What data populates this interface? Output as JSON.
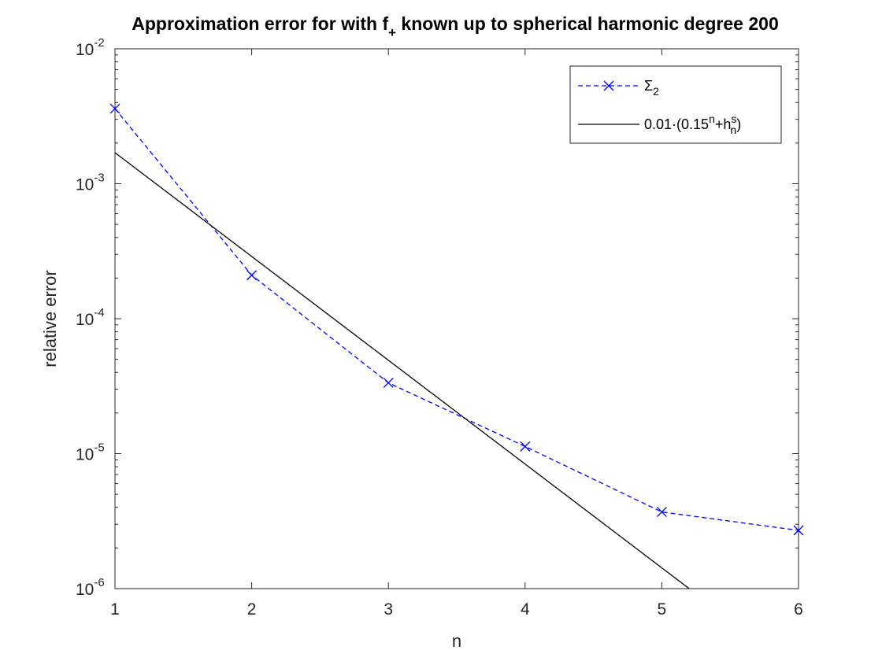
{
  "chart_data": {
    "type": "line",
    "title_main": "Approximation error for with f",
    "title_sub": "+",
    "title_rest": " known up to spherical harmonic degree 200",
    "xlabel": "n",
    "ylabel": "relative error",
    "xlim": [
      1,
      6
    ],
    "ylim": [
      1e-06,
      0.01
    ],
    "yscale": "log",
    "x_ticks": [
      "1",
      "2",
      "3",
      "4",
      "5",
      "6"
    ],
    "y_ticks": [
      {
        "base": "10",
        "exp": "-6"
      },
      {
        "base": "10",
        "exp": "-5"
      },
      {
        "base": "10",
        "exp": "-4"
      },
      {
        "base": "10",
        "exp": "-3"
      },
      {
        "base": "10",
        "exp": "-2"
      }
    ],
    "grid": false,
    "legend_position": "top-right",
    "series": [
      {
        "name": "Σ2",
        "legend_main": "Σ",
        "legend_sub": "2",
        "color": "#0000ff",
        "style": "dashed",
        "marker": "x",
        "x": [
          1,
          2,
          3,
          4,
          5,
          6
        ],
        "y": [
          0.0036,
          0.00021,
          3.35e-05,
          1.13e-05,
          3.7e-06,
          2.7e-06
        ]
      },
      {
        "name": "0.01·(0.15n+hns)",
        "legend_main": "0.01·(0.15",
        "legend_sup1": "n",
        "legend_mid": "+h",
        "legend_sub2": "n",
        "legend_sup2": "s",
        "legend_end": ")",
        "color": "#000000",
        "style": "solid",
        "marker": "none",
        "x": [
          1,
          5.2
        ],
        "y": [
          0.0017,
          1e-06
        ]
      }
    ]
  }
}
